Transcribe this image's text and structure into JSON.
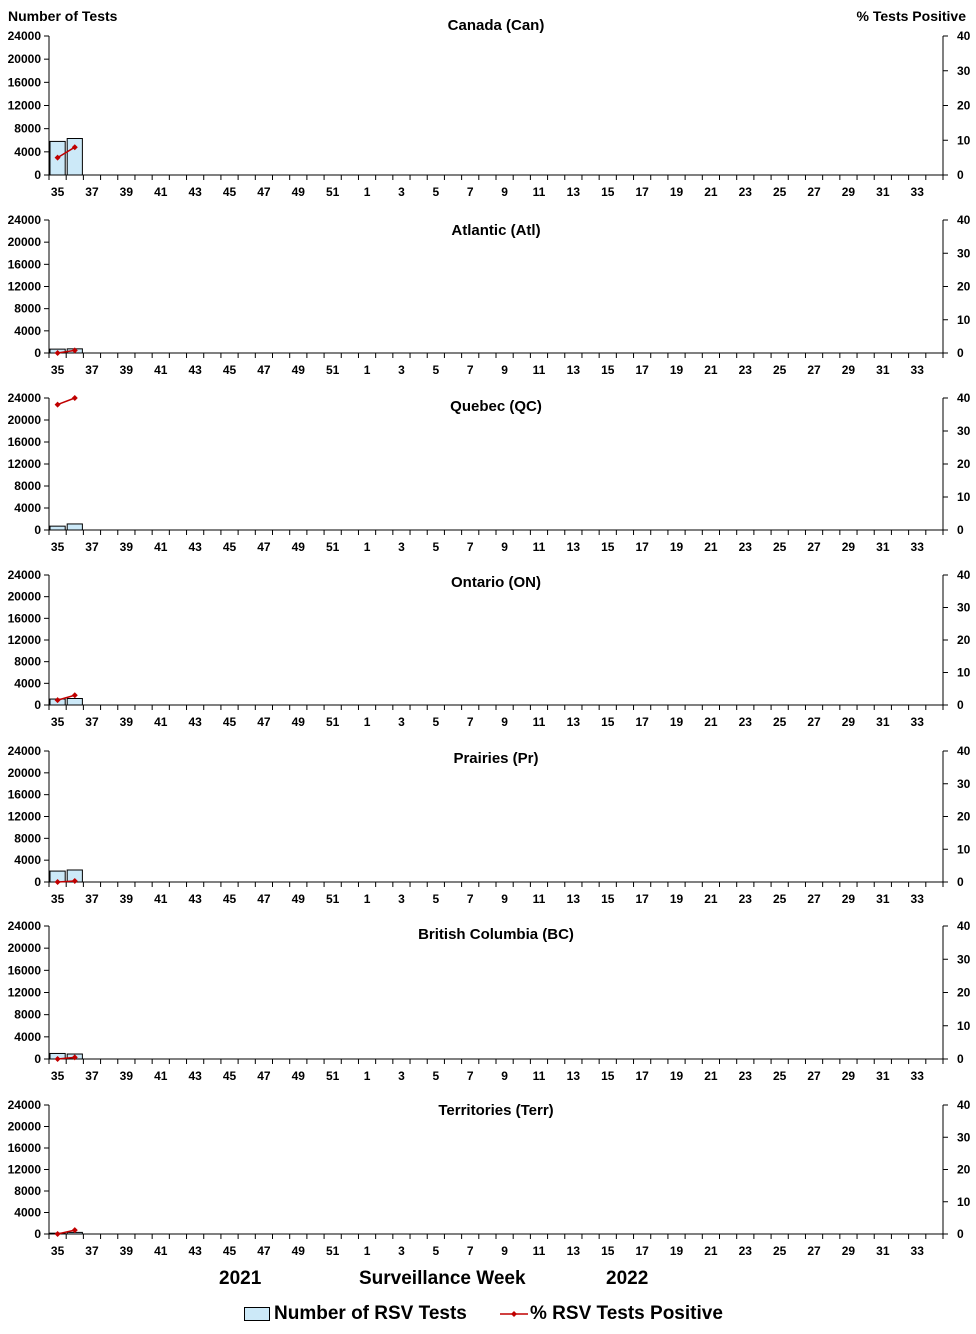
{
  "header": {
    "y_left_title": "Number of Tests",
    "y_right_title": "%  Tests Positive"
  },
  "footer": {
    "year_start": "2021",
    "x_title": "Surveillance Week",
    "year_end": "2022"
  },
  "legend": {
    "bars_label": "Number of RSV Tests",
    "line_label": "% RSV Tests Positive"
  },
  "colors": {
    "bar_fill": "#cce9f8",
    "bar_stroke": "#000000",
    "line": "#c00000"
  },
  "chart_data": [
    {
      "type": "bar+line",
      "title": "Canada (Can)",
      "weeks": [
        35,
        36,
        37,
        38,
        39,
        40,
        41,
        42,
        43,
        44,
        45,
        46,
        47,
        48,
        49,
        50,
        51,
        52,
        1,
        2,
        3,
        4,
        5,
        6,
        7,
        8,
        9,
        10,
        11,
        12,
        13,
        14,
        15,
        16,
        17,
        18,
        19,
        20,
        21,
        22,
        23,
        24,
        25,
        26,
        27,
        28,
        29,
        30,
        31,
        32,
        33,
        34
      ],
      "tick_labels": [
        "35",
        "37",
        "39",
        "41",
        "43",
        "45",
        "47",
        "49",
        "51",
        "1",
        "3",
        "5",
        "7",
        "9",
        "11",
        "13",
        "15",
        "17",
        "19",
        "21",
        "23",
        "25",
        "27",
        "29",
        "31",
        "33"
      ],
      "y_left_ticks": [
        "0",
        "4000",
        "8000",
        "12000",
        "16000",
        "20000",
        "24000"
      ],
      "y_right_ticks": [
        "0",
        "10",
        "20",
        "30",
        "40"
      ],
      "ylim_tests": [
        0,
        24000
      ],
      "ylim_percent": [
        0,
        40
      ],
      "tests": [
        5800,
        6300
      ],
      "percent_positive": [
        5.0,
        8.0
      ]
    },
    {
      "type": "bar+line",
      "title": "Atlantic (Atl)",
      "weeks": [
        35,
        36,
        37,
        38,
        39,
        40,
        41,
        42,
        43,
        44,
        45,
        46,
        47,
        48,
        49,
        50,
        51,
        52,
        1,
        2,
        3,
        4,
        5,
        6,
        7,
        8,
        9,
        10,
        11,
        12,
        13,
        14,
        15,
        16,
        17,
        18,
        19,
        20,
        21,
        22,
        23,
        24,
        25,
        26,
        27,
        28,
        29,
        30,
        31,
        32,
        33,
        34
      ],
      "tick_labels": [
        "35",
        "37",
        "39",
        "41",
        "43",
        "45",
        "47",
        "49",
        "51",
        "1",
        "3",
        "5",
        "7",
        "9",
        "11",
        "13",
        "15",
        "17",
        "19",
        "21",
        "23",
        "25",
        "27",
        "29",
        "31",
        "33"
      ],
      "y_left_ticks": [
        "0",
        "4000",
        "8000",
        "12000",
        "16000",
        "20000",
        "24000"
      ],
      "y_right_ticks": [
        "0",
        "10",
        "20",
        "30",
        "40"
      ],
      "ylim_tests": [
        0,
        24000
      ],
      "ylim_percent": [
        0,
        40
      ],
      "tests": [
        700,
        750
      ],
      "percent_positive": [
        0.0,
        0.8
      ]
    },
    {
      "type": "bar+line",
      "title": "Quebec (QC)",
      "weeks": [
        35,
        36,
        37,
        38,
        39,
        40,
        41,
        42,
        43,
        44,
        45,
        46,
        47,
        48,
        49,
        50,
        51,
        52,
        1,
        2,
        3,
        4,
        5,
        6,
        7,
        8,
        9,
        10,
        11,
        12,
        13,
        14,
        15,
        16,
        17,
        18,
        19,
        20,
        21,
        22,
        23,
        24,
        25,
        26,
        27,
        28,
        29,
        30,
        31,
        32,
        33,
        34
      ],
      "tick_labels": [
        "35",
        "37",
        "39",
        "41",
        "43",
        "45",
        "47",
        "49",
        "51",
        "1",
        "3",
        "5",
        "7",
        "9",
        "11",
        "13",
        "15",
        "17",
        "19",
        "21",
        "23",
        "25",
        "27",
        "29",
        "31",
        "33"
      ],
      "y_left_ticks": [
        "0",
        "4000",
        "8000",
        "12000",
        "16000",
        "20000",
        "24000"
      ],
      "y_right_ticks": [
        "0",
        "10",
        "20",
        "30",
        "40"
      ],
      "ylim_tests": [
        0,
        24000
      ],
      "ylim_percent": [
        0,
        40
      ],
      "tests": [
        700,
        1100
      ],
      "percent_positive": [
        38.0,
        40.0
      ]
    },
    {
      "type": "bar+line",
      "title": "Ontario (ON)",
      "weeks": [
        35,
        36,
        37,
        38,
        39,
        40,
        41,
        42,
        43,
        44,
        45,
        46,
        47,
        48,
        49,
        50,
        51,
        52,
        1,
        2,
        3,
        4,
        5,
        6,
        7,
        8,
        9,
        10,
        11,
        12,
        13,
        14,
        15,
        16,
        17,
        18,
        19,
        20,
        21,
        22,
        23,
        24,
        25,
        26,
        27,
        28,
        29,
        30,
        31,
        32,
        33,
        34
      ],
      "tick_labels": [
        "35",
        "37",
        "39",
        "41",
        "43",
        "45",
        "47",
        "49",
        "51",
        "1",
        "3",
        "5",
        "7",
        "9",
        "11",
        "13",
        "15",
        "17",
        "19",
        "21",
        "23",
        "25",
        "27",
        "29",
        "31",
        "33"
      ],
      "y_left_ticks": [
        "0",
        "4000",
        "8000",
        "12000",
        "16000",
        "20000",
        "24000"
      ],
      "y_right_ticks": [
        "0",
        "10",
        "20",
        "30",
        "40"
      ],
      "ylim_tests": [
        0,
        24000
      ],
      "ylim_percent": [
        0,
        40
      ],
      "tests": [
        1100,
        1200
      ],
      "percent_positive": [
        1.5,
        3.0
      ]
    },
    {
      "type": "bar+line",
      "title": "Prairies (Pr)",
      "weeks": [
        35,
        36,
        37,
        38,
        39,
        40,
        41,
        42,
        43,
        44,
        45,
        46,
        47,
        48,
        49,
        50,
        51,
        52,
        1,
        2,
        3,
        4,
        5,
        6,
        7,
        8,
        9,
        10,
        11,
        12,
        13,
        14,
        15,
        16,
        17,
        18,
        19,
        20,
        21,
        22,
        23,
        24,
        25,
        26,
        27,
        28,
        29,
        30,
        31,
        32,
        33,
        34
      ],
      "tick_labels": [
        "35",
        "37",
        "39",
        "41",
        "43",
        "45",
        "47",
        "49",
        "51",
        "1",
        "3",
        "5",
        "7",
        "9",
        "11",
        "13",
        "15",
        "17",
        "19",
        "21",
        "23",
        "25",
        "27",
        "29",
        "31",
        "33"
      ],
      "y_left_ticks": [
        "0",
        "4000",
        "8000",
        "12000",
        "16000",
        "20000",
        "24000"
      ],
      "y_right_ticks": [
        "0",
        "10",
        "20",
        "30",
        "40"
      ],
      "ylim_tests": [
        0,
        24000
      ],
      "ylim_percent": [
        0,
        40
      ],
      "tests": [
        2000,
        2200
      ],
      "percent_positive": [
        0.0,
        0.3
      ]
    },
    {
      "type": "bar+line",
      "title": "British Columbia (BC)",
      "weeks": [
        35,
        36,
        37,
        38,
        39,
        40,
        41,
        42,
        43,
        44,
        45,
        46,
        47,
        48,
        49,
        50,
        51,
        52,
        1,
        2,
        3,
        4,
        5,
        6,
        7,
        8,
        9,
        10,
        11,
        12,
        13,
        14,
        15,
        16,
        17,
        18,
        19,
        20,
        21,
        22,
        23,
        24,
        25,
        26,
        27,
        28,
        29,
        30,
        31,
        32,
        33,
        34
      ],
      "tick_labels": [
        "35",
        "37",
        "39",
        "41",
        "43",
        "45",
        "47",
        "49",
        "51",
        "1",
        "3",
        "5",
        "7",
        "9",
        "11",
        "13",
        "15",
        "17",
        "19",
        "21",
        "23",
        "25",
        "27",
        "29",
        "31",
        "33"
      ],
      "y_left_ticks": [
        "0",
        "4000",
        "8000",
        "12000",
        "16000",
        "20000",
        "24000"
      ],
      "y_right_ticks": [
        "0",
        "10",
        "20",
        "30",
        "40"
      ],
      "ylim_tests": [
        0,
        24000
      ],
      "ylim_percent": [
        0,
        40
      ],
      "tests": [
        1000,
        900
      ],
      "percent_positive": [
        0.0,
        0.5
      ]
    },
    {
      "type": "bar+line",
      "title": "Territories (Terr)",
      "weeks": [
        35,
        36,
        37,
        38,
        39,
        40,
        41,
        42,
        43,
        44,
        45,
        46,
        47,
        48,
        49,
        50,
        51,
        52,
        1,
        2,
        3,
        4,
        5,
        6,
        7,
        8,
        9,
        10,
        11,
        12,
        13,
        14,
        15,
        16,
        17,
        18,
        19,
        20,
        21,
        22,
        23,
        24,
        25,
        26,
        27,
        28,
        29,
        30,
        31,
        32,
        33,
        34
      ],
      "tick_labels": [
        "35",
        "37",
        "39",
        "41",
        "43",
        "45",
        "47",
        "49",
        "51",
        "1",
        "3",
        "5",
        "7",
        "9",
        "11",
        "13",
        "15",
        "17",
        "19",
        "21",
        "23",
        "25",
        "27",
        "29",
        "31",
        "33"
      ],
      "y_left_ticks": [
        "0",
        "4000",
        "8000",
        "12000",
        "16000",
        "20000",
        "24000"
      ],
      "y_right_ticks": [
        "0",
        "10",
        "20",
        "30",
        "40"
      ],
      "ylim_tests": [
        0,
        24000
      ],
      "ylim_percent": [
        0,
        40
      ],
      "tests": [
        150,
        300
      ],
      "percent_positive": [
        0.0,
        1.2
      ]
    }
  ]
}
